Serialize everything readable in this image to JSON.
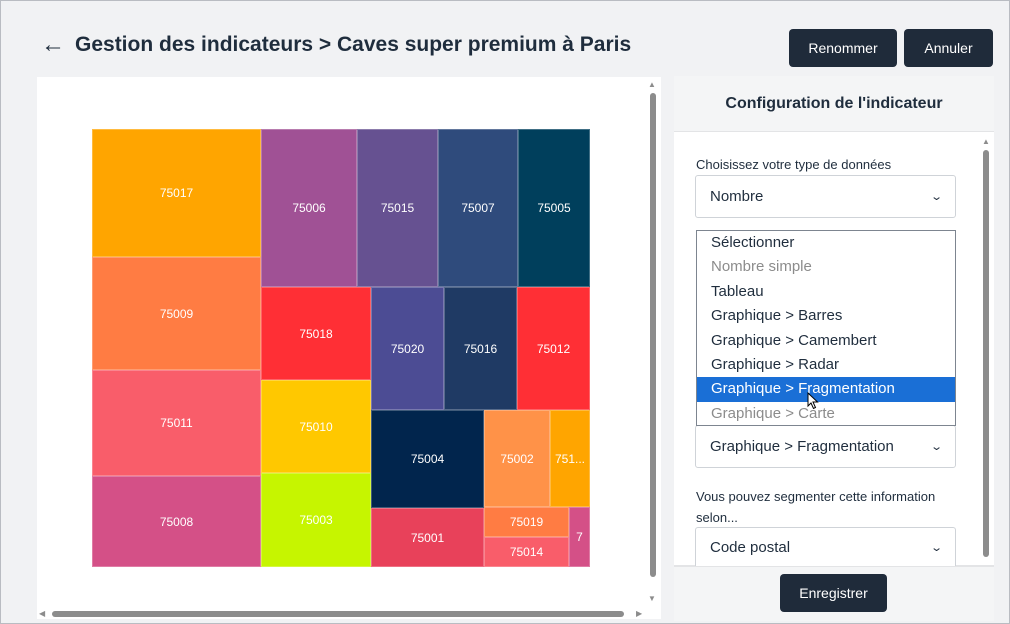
{
  "header": {
    "back_arrow": "←",
    "title": "Gestion des indicateurs > Caves super premium à Paris",
    "rename_label": "Renommer",
    "cancel_label": "Annuler"
  },
  "chart_data": {
    "type": "treemap",
    "items": [
      {
        "label": "75017",
        "color": "#ffa500"
      },
      {
        "label": "75009",
        "color": "#ff7c43"
      },
      {
        "label": "75011",
        "color": "#f95d6a"
      },
      {
        "label": "75008",
        "color": "#d45087"
      },
      {
        "label": "75006",
        "color": "#a05195"
      },
      {
        "label": "75015",
        "color": "#665191"
      },
      {
        "label": "75007",
        "color": "#2f4b7c"
      },
      {
        "label": "75005",
        "color": "#003f5c"
      },
      {
        "label": "75018",
        "color": "#ff2f35"
      },
      {
        "label": "75020",
        "color": "#4c4c94"
      },
      {
        "label": "75016",
        "color": "#1f3a64"
      },
      {
        "label": "75012",
        "color": "#ff2f35"
      },
      {
        "label": "75010",
        "color": "#ffc800"
      },
      {
        "label": "75003",
        "color": "#c6f500"
      },
      {
        "label": "75004",
        "color": "#01254d"
      },
      {
        "label": "75001",
        "color": "#e8415a"
      },
      {
        "label": "75002",
        "color": "#ff9248"
      },
      {
        "label": "751...",
        "color": "#ffa500"
      },
      {
        "label": "75019",
        "color": "#ff7c43"
      },
      {
        "label": "75014",
        "color": "#f95d6a"
      },
      {
        "label": "7",
        "color": "#d45087"
      }
    ]
  },
  "config": {
    "title": "Configuration de l'indicateur",
    "data_type_label": "Choisissez votre type de données",
    "data_type_value": "Nombre",
    "display_dropdown": {
      "options": [
        {
          "label": "Sélectionner",
          "state": "normal"
        },
        {
          "label": "Nombre simple",
          "state": "disabled"
        },
        {
          "label": "Tableau",
          "state": "normal"
        },
        {
          "label": "Graphique > Barres",
          "state": "normal"
        },
        {
          "label": "Graphique > Camembert",
          "state": "normal"
        },
        {
          "label": "Graphique > Radar",
          "state": "normal"
        },
        {
          "label": "Graphique > Fragmentation",
          "state": "selected"
        },
        {
          "label": "Graphique > Carte",
          "state": "disabled"
        }
      ]
    },
    "display_value": "Graphique > Fragmentation",
    "segment_label": "Vous pouvez segmenter cette information selon...",
    "segment_value": "Code postal",
    "save_label": "Enregistrer"
  }
}
